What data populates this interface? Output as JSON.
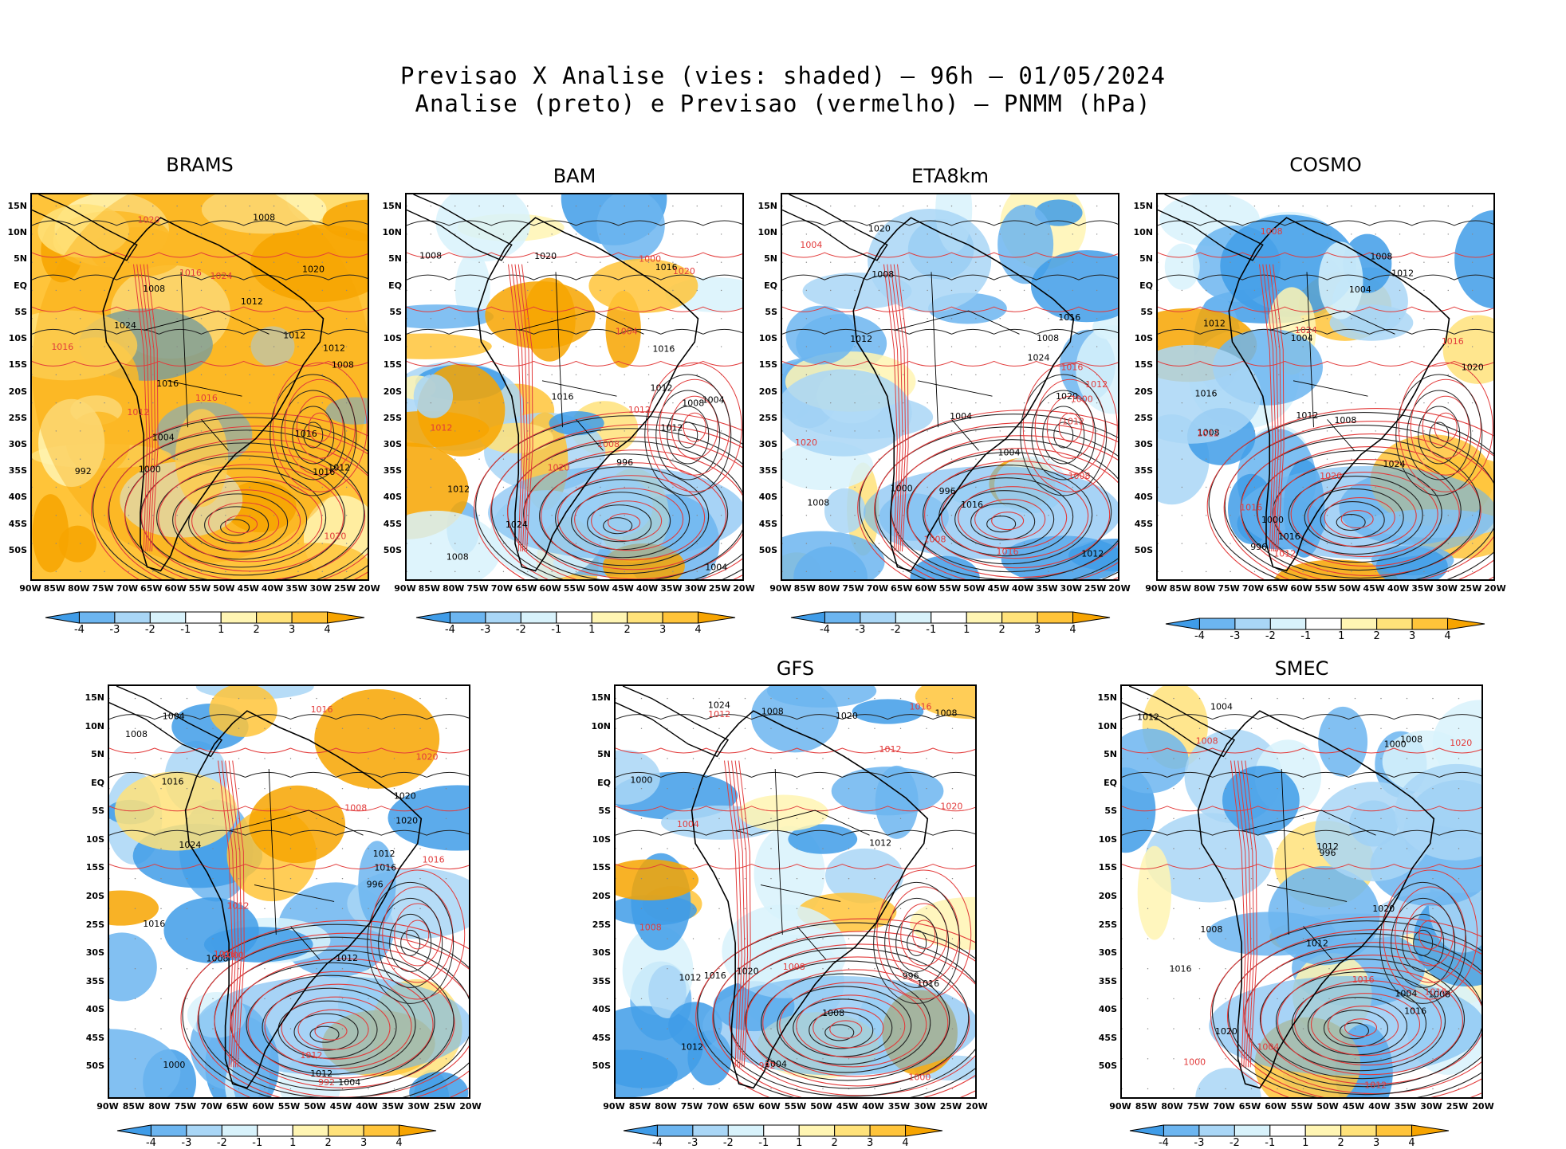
{
  "titles": {
    "line1": "Previsao X Analise (vies: shaded) – 96h – 01/05/2024",
    "line2": "Analise (preto) e Previsao (vermelho) – PNMM (hPa)"
  },
  "chart_data": {
    "type": "heatmap",
    "variable": "PNMM (hPa)",
    "lead_time": "96h",
    "date": "01/05/2024",
    "lat_ticks": [
      "15N",
      "10N",
      "5N",
      "EQ",
      "5S",
      "10S",
      "15S",
      "20S",
      "25S",
      "30S",
      "35S",
      "40S",
      "45S",
      "50S"
    ],
    "lon_ticks": [
      "90W",
      "85W",
      "80W",
      "75W",
      "70W",
      "65W",
      "60W",
      "55W",
      "50W",
      "45W",
      "40W",
      "35W",
      "30W",
      "25W",
      "20W"
    ],
    "colorbar": {
      "labels": [
        "-4",
        "-3",
        "-2",
        "-1",
        "1",
        "2",
        "3",
        "4"
      ],
      "colors": [
        "#3f9ce8",
        "#6cb5f0",
        "#a9d6f6",
        "#d8f2fb",
        "#ffffff",
        "#fff5b3",
        "#ffe27a",
        "#ffc43a",
        "#f7a400"
      ]
    },
    "panels": [
      {
        "name": "BRAMS",
        "bias": "positive",
        "contour_labels_black": [
          "1008",
          "1012",
          "1012",
          "1008",
          "1016",
          "1012",
          "1004",
          "1008",
          "1016",
          "1020",
          "1024",
          "1016",
          "1012",
          "1000",
          "992"
        ],
        "contour_labels_red": [
          "1016",
          "1012",
          "1016",
          "1020",
          "1016",
          "1020",
          "1024"
        ]
      },
      {
        "name": "BAM",
        "bias": "mixed",
        "contour_labels_black": [
          "1016",
          "1012",
          "1012",
          "1008",
          "1004",
          "1008",
          "1012",
          "1016",
          "1020",
          "1008",
          "1004",
          "996",
          "1024",
          "1016"
        ],
        "contour_labels_red": [
          "1012",
          "1012",
          "1008",
          "1020",
          "1004",
          "1000",
          "1020"
        ]
      },
      {
        "name": "ETA8km",
        "bias": "negative",
        "contour_labels_black": [
          "1016",
          "1008",
          "1012",
          "1008",
          "1004",
          "1008",
          "1012",
          "1016",
          "1020",
          "1000",
          "1004",
          "996",
          "1024",
          "1020"
        ],
        "contour_labels_red": [
          "1012",
          "1012",
          "1008",
          "1016",
          "1020",
          "1004",
          "1000",
          "1008",
          "1016"
        ]
      },
      {
        "name": "COSMO",
        "bias": "negative",
        "contour_labels_black": [
          "1008",
          "1012",
          "1012",
          "1016",
          "1008",
          "1012",
          "1004",
          "1020",
          "1016",
          "1008",
          "1004",
          "1000",
          "996",
          "1024"
        ],
        "contour_labels_red": [
          "1016",
          "1012",
          "1016",
          "1020",
          "1012",
          "1008",
          "1024"
        ]
      },
      {
        "name": "",
        "bias": "negative",
        "contour_labels_black": [
          "1016",
          "1012",
          "1008",
          "1016",
          "1012",
          "1004",
          "1008",
          "1016",
          "1020",
          "1012",
          "1004",
          "1000",
          "996",
          "1024",
          "1020"
        ],
        "contour_labels_red": [
          "1016",
          "1012",
          "1012",
          "1008",
          "1016",
          "1020",
          "1000",
          "992",
          "1016"
        ]
      },
      {
        "name": "GFS",
        "bias": "negative",
        "contour_labels_black": [
          "1016",
          "1012",
          "1008",
          "1012",
          "1016",
          "1008",
          "1004",
          "1012",
          "1020",
          "1000",
          "996",
          "1008",
          "1024",
          "1020"
        ],
        "contour_labels_red": [
          "1012",
          "1008",
          "1016",
          "1004",
          "1008",
          "1000",
          "992",
          "1012",
          "1020"
        ]
      },
      {
        "name": "SMEC",
        "bias": "negative",
        "contour_labels_black": [
          "1012",
          "1008",
          "1012",
          "1008",
          "1004",
          "1012",
          "1016",
          "1020",
          "1008",
          "1004",
          "996",
          "1000",
          "1020",
          "1016"
        ],
        "contour_labels_red": [
          "1012",
          "1016",
          "1008",
          "1020",
          "1004",
          "1000",
          "1016"
        ]
      }
    ]
  }
}
